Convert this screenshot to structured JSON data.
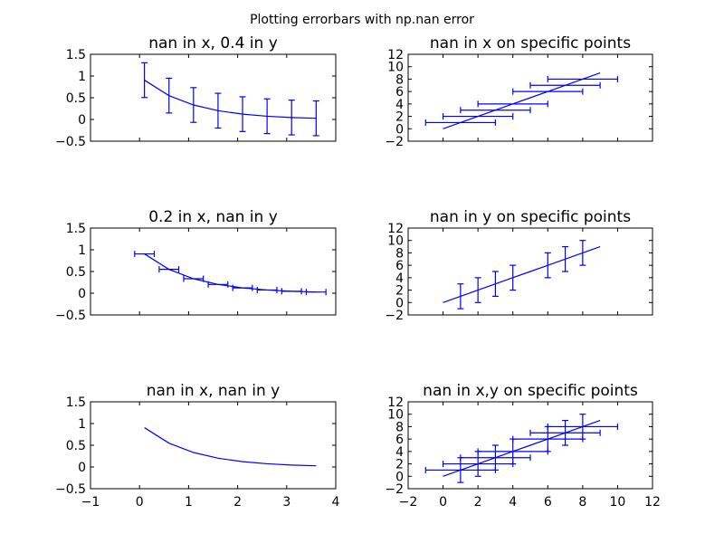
{
  "figure": {
    "title": "Plotting errorbars with np.nan error",
    "series_color": "#0000ff"
  },
  "chart_data": [
    {
      "type": "line",
      "title": "nan in x, 0.4 in y",
      "xlim": [
        -1,
        4
      ],
      "ylim": [
        -0.5,
        1.5
      ],
      "xticks": [
        -1,
        0,
        1,
        2,
        3,
        4
      ],
      "yticks": [
        -0.5,
        0.0,
        0.5,
        1.0,
        1.5
      ],
      "show_xtick_labels": false,
      "x": [
        0.1,
        0.6,
        1.1,
        1.6,
        2.1,
        2.6,
        3.1,
        3.6
      ],
      "y": [
        0.905,
        0.549,
        0.333,
        0.202,
        0.122,
        0.074,
        0.045,
        0.027
      ],
      "xerr": null,
      "yerr": [
        0.4,
        0.4,
        0.4,
        0.4,
        0.4,
        0.4,
        0.4,
        0.4
      ]
    },
    {
      "type": "line",
      "title": "nan in x on specific points",
      "xlim": [
        -2,
        12
      ],
      "ylim": [
        -2,
        12
      ],
      "xticks": [
        -2,
        0,
        2,
        4,
        6,
        8,
        10,
        12
      ],
      "yticks": [
        -2,
        0,
        2,
        4,
        6,
        8,
        10,
        12
      ],
      "show_xtick_labels": false,
      "x": [
        0,
        1,
        2,
        3,
        4,
        5,
        6,
        7,
        8,
        9
      ],
      "y": [
        0,
        1,
        2,
        3,
        4,
        5,
        6,
        7,
        8,
        9
      ],
      "xerr": [
        null,
        2,
        2,
        2,
        2,
        null,
        2,
        2,
        2,
        null
      ],
      "yerr": null
    },
    {
      "type": "line",
      "title": "0.2 in x, nan in y",
      "xlim": [
        -1,
        4
      ],
      "ylim": [
        -0.5,
        1.5
      ],
      "xticks": [
        -1,
        0,
        1,
        2,
        3,
        4
      ],
      "yticks": [
        -0.5,
        0.0,
        0.5,
        1.0,
        1.5
      ],
      "show_xtick_labels": false,
      "x": [
        0.1,
        0.6,
        1.1,
        1.6,
        2.1,
        2.6,
        3.1,
        3.6
      ],
      "y": [
        0.905,
        0.549,
        0.333,
        0.202,
        0.122,
        0.074,
        0.045,
        0.027
      ],
      "xerr": [
        0.2,
        0.2,
        0.2,
        0.2,
        0.2,
        0.2,
        0.2,
        0.2
      ],
      "yerr": null
    },
    {
      "type": "line",
      "title": "nan in y on specific points",
      "xlim": [
        -2,
        12
      ],
      "ylim": [
        -2,
        12
      ],
      "xticks": [
        -2,
        0,
        2,
        4,
        6,
        8,
        10,
        12
      ],
      "yticks": [
        -2,
        0,
        2,
        4,
        6,
        8,
        10,
        12
      ],
      "show_xtick_labels": false,
      "x": [
        0,
        1,
        2,
        3,
        4,
        5,
        6,
        7,
        8,
        9
      ],
      "y": [
        0,
        1,
        2,
        3,
        4,
        5,
        6,
        7,
        8,
        9
      ],
      "xerr": null,
      "yerr": [
        null,
        2,
        2,
        2,
        2,
        null,
        2,
        2,
        2,
        null
      ]
    },
    {
      "type": "line",
      "title": "nan in x, nan in y",
      "xlim": [
        -1,
        4
      ],
      "ylim": [
        -0.5,
        1.5
      ],
      "xticks": [
        -1,
        0,
        1,
        2,
        3,
        4
      ],
      "yticks": [
        -0.5,
        0.0,
        0.5,
        1.0,
        1.5
      ],
      "show_xtick_labels": true,
      "x": [
        0.1,
        0.6,
        1.1,
        1.6,
        2.1,
        2.6,
        3.1,
        3.6
      ],
      "y": [
        0.905,
        0.549,
        0.333,
        0.202,
        0.122,
        0.074,
        0.045,
        0.027
      ],
      "xerr": null,
      "yerr": null
    },
    {
      "type": "line",
      "title": "nan in x,y on specific points",
      "xlim": [
        -2,
        12
      ],
      "ylim": [
        -2,
        12
      ],
      "xticks": [
        -2,
        0,
        2,
        4,
        6,
        8,
        10,
        12
      ],
      "yticks": [
        -2,
        0,
        2,
        4,
        6,
        8,
        10,
        12
      ],
      "show_xtick_labels": true,
      "x": [
        0,
        1,
        2,
        3,
        4,
        5,
        6,
        7,
        8,
        9
      ],
      "y": [
        0,
        1,
        2,
        3,
        4,
        5,
        6,
        7,
        8,
        9
      ],
      "xerr": [
        null,
        2,
        2,
        2,
        2,
        null,
        2,
        2,
        2,
        null
      ],
      "yerr": [
        null,
        2,
        2,
        2,
        2,
        null,
        2,
        2,
        2,
        null
      ]
    }
  ]
}
